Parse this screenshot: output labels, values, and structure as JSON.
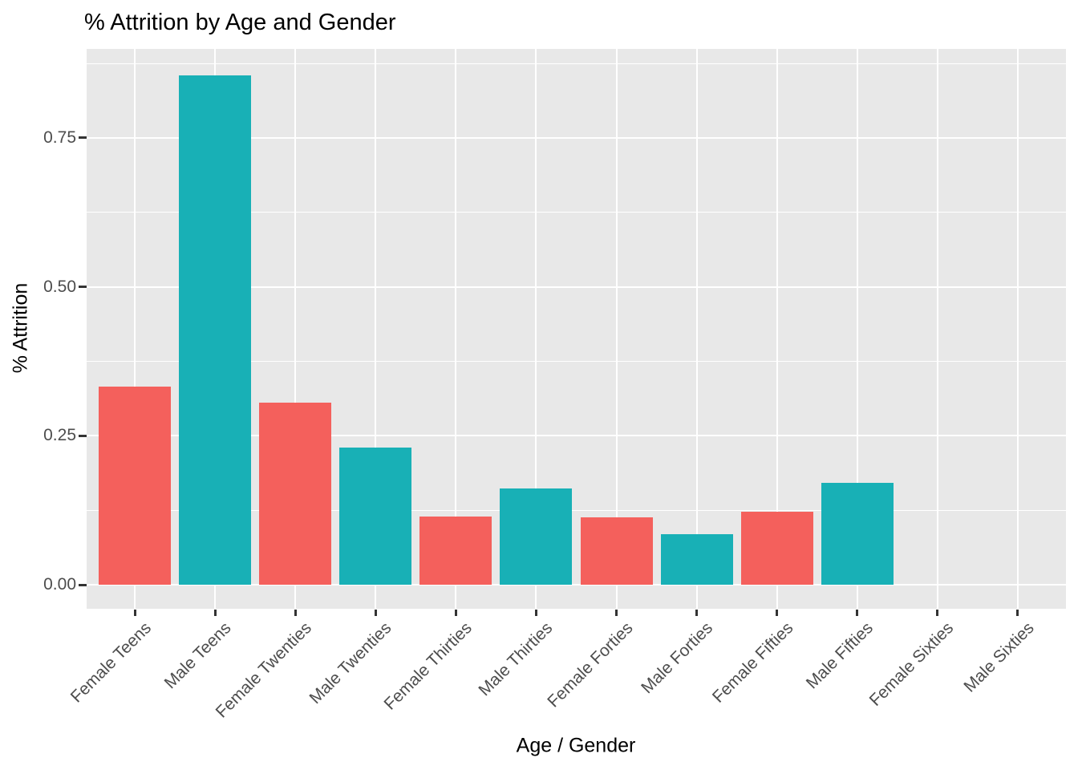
{
  "chart_data": {
    "type": "bar",
    "title": "% Attrition by Age and Gender",
    "xlabel": "Age / Gender",
    "ylabel": "% Attrition",
    "categories": [
      "Female Teens",
      "Male Teens",
      "Female Twenties",
      "Male Twenties",
      "Female Thirties",
      "Male Thirties",
      "Female Forties",
      "Male Forties",
      "Female Fifties",
      "Male Fifties",
      "Female Sixties",
      "Male Sixties"
    ],
    "values": [
      0.333,
      0.855,
      0.305,
      0.23,
      0.115,
      0.161,
      0.113,
      0.085,
      0.122,
      0.171,
      0,
      0
    ],
    "genders": [
      "female",
      "male",
      "female",
      "male",
      "female",
      "male",
      "female",
      "male",
      "female",
      "male",
      "female",
      "male"
    ],
    "colors": {
      "female": "#F4605C",
      "male": "#18B0B6"
    },
    "y_tick_values": [
      0,
      0.25,
      0.5,
      0.75
    ],
    "y_tick_labels": [
      "0.00",
      "0.25",
      "0.50",
      "0.75"
    ],
    "minor_grid_values": [
      0.125,
      0.375,
      0.625,
      0.875
    ],
    "ylim": [
      -0.043,
      0.899
    ],
    "bar_width_fraction": 0.9,
    "legend": "none",
    "grid": "on",
    "panel_background": "#E8E8E8",
    "gridline_color": "#FFFFFF",
    "tick_label_color": "#4D4D4D",
    "axis_text_color": "#000000"
  }
}
